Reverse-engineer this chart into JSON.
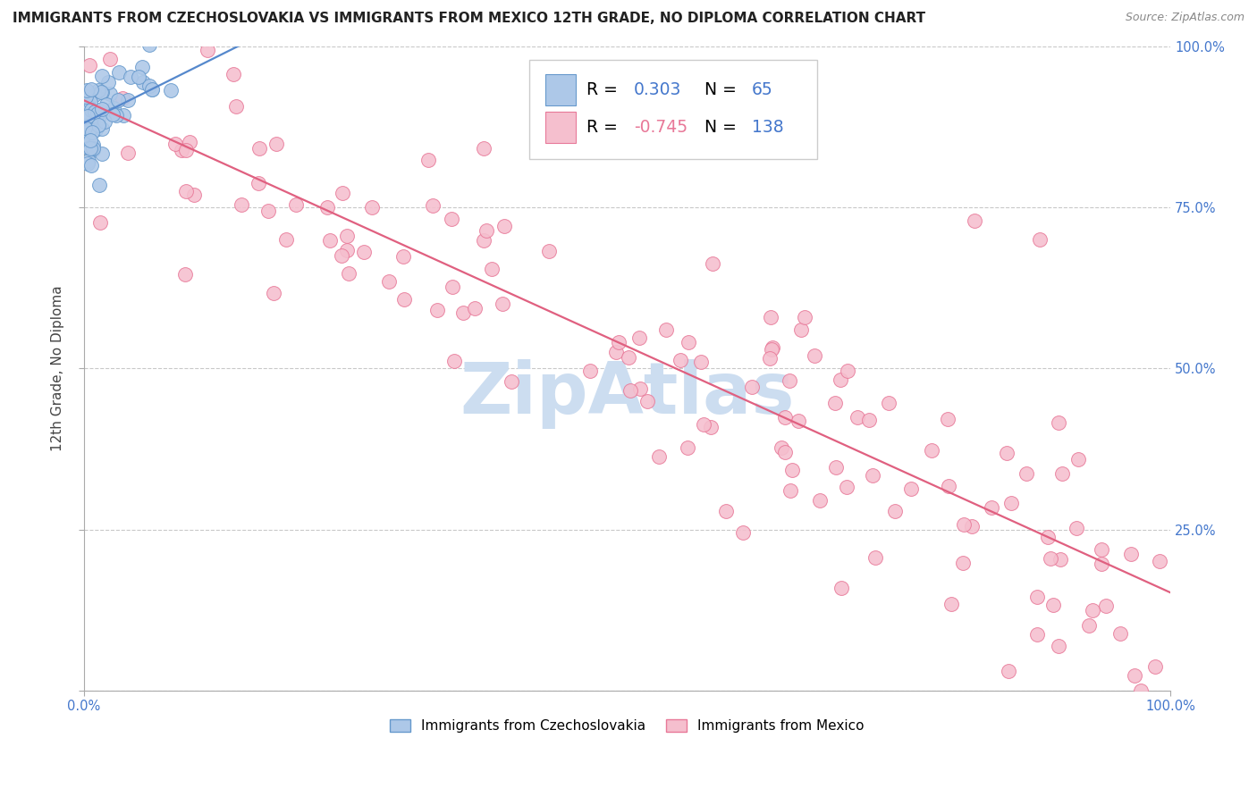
{
  "title": "IMMIGRANTS FROM CZECHOSLOVAKIA VS IMMIGRANTS FROM MEXICO 12TH GRADE, NO DIPLOMA CORRELATION CHART",
  "source": "Source: ZipAtlas.com",
  "ylabel": "12th Grade, No Diploma",
  "legend_label1": "Immigrants from Czechoslovakia",
  "legend_label2": "Immigrants from Mexico",
  "r1": 0.303,
  "n1": 65,
  "r2": -0.745,
  "n2": 138,
  "blue_color": "#adc8e8",
  "blue_edge": "#6699cc",
  "pink_color": "#f5bfce",
  "pink_edge": "#e87898",
  "blue_line_color": "#5588cc",
  "pink_line_color": "#e06080",
  "background_color": "#ffffff",
  "grid_color": "#bbbbbb",
  "title_fontsize": 11,
  "source_fontsize": 9,
  "watermark_text": "ZipAtlas",
  "watermark_color": "#ccddf0",
  "right_tick_color": "#4477cc",
  "seed": 42
}
